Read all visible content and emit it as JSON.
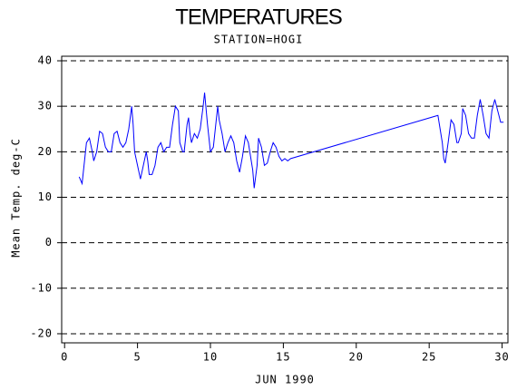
{
  "chart_data": {
    "type": "line",
    "title": "TEMPERATURES",
    "subtitle": "STATION=HOGI",
    "x_label": "JUN 1990",
    "y_label": "Mean Temp. deg-C",
    "xlim": [
      -0.2,
      30.4
    ],
    "ylim": [
      -22,
      41
    ],
    "xticks": [
      0,
      5,
      10,
      15,
      20,
      25,
      30
    ],
    "yticks": [
      -20,
      -10,
      0,
      10,
      20,
      30,
      40
    ],
    "grid": true,
    "x": [
      1.0,
      1.2,
      1.5,
      1.7,
      1.9,
      2.0,
      2.2,
      2.4,
      2.6,
      2.8,
      3.0,
      3.2,
      3.4,
      3.6,
      3.8,
      4.0,
      4.2,
      4.4,
      4.6,
      4.7,
      4.8,
      5.0,
      5.2,
      5.4,
      5.6,
      5.7,
      5.8,
      6.0,
      6.2,
      6.4,
      6.6,
      6.8,
      7.0,
      7.2,
      7.4,
      7.6,
      7.8,
      7.9,
      8.1,
      8.2,
      8.4,
      8.5,
      8.6,
      8.7,
      8.9,
      9.1,
      9.3,
      9.5,
      9.6,
      9.8,
      10.0,
      10.2,
      10.4,
      10.5,
      10.6,
      10.8,
      11.0,
      11.2,
      11.4,
      11.6,
      11.8,
      12.0,
      12.2,
      12.4,
      12.6,
      12.8,
      12.9,
      13.0,
      13.2,
      13.3,
      13.5,
      13.7,
      13.9,
      14.1,
      14.3,
      14.5,
      14.7,
      14.9,
      15.1,
      15.3,
      15.5,
      25.6,
      25.7,
      25.9,
      26.0,
      26.1,
      26.3,
      26.5,
      26.7,
      26.9,
      27.0,
      27.2,
      27.3,
      27.5,
      27.7,
      27.9,
      28.1,
      28.3,
      28.5,
      28.7,
      28.9,
      29.1,
      29.3,
      29.5,
      29.7,
      29.9,
      30.1
    ],
    "series": [
      {
        "name": "Mean Temp",
        "color": "#0000ff",
        "values": [
          14.5,
          13,
          22,
          23,
          20,
          18,
          20,
          24.5,
          24,
          21,
          20,
          20,
          24,
          24.5,
          22,
          21,
          22,
          25,
          30,
          26,
          20,
          17,
          14,
          17,
          20,
          18,
          15,
          15,
          17,
          21,
          22,
          20,
          21,
          21,
          26,
          30,
          29,
          22,
          20,
          20,
          26,
          27.5,
          24,
          22,
          24,
          23,
          25,
          30,
          33,
          26,
          20,
          21,
          27,
          30,
          27,
          24,
          20,
          22,
          23.5,
          22,
          18,
          15.5,
          19,
          23.5,
          22,
          18,
          16,
          12,
          17,
          23,
          21,
          17,
          17.5,
          20,
          22,
          21,
          19,
          18,
          18.5,
          18,
          18.5,
          28,
          26,
          22,
          18.5,
          17.5,
          22,
          27,
          26,
          22,
          22,
          24,
          29.5,
          28,
          24,
          23,
          23,
          28,
          31.5,
          28,
          24,
          23,
          29,
          31.5,
          29,
          26.5,
          26.5
        ]
      }
    ]
  }
}
